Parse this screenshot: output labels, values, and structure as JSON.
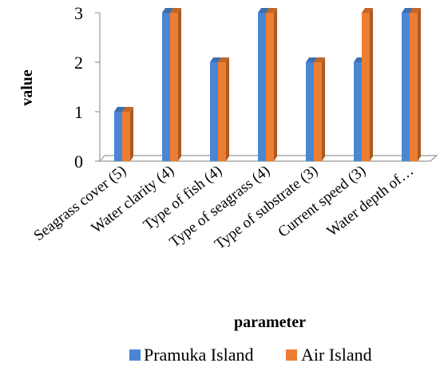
{
  "chart_data": {
    "type": "bar",
    "categories": [
      "Seagrass cover (5)",
      "Water clarity (4)",
      "Type of fish (4)",
      "Type of seagrass (4)",
      "Type of substrate (3)",
      "Current speed (3)",
      "Water depth of…"
    ],
    "series": [
      {
        "name": "Pramuka Island",
        "values": [
          1,
          3,
          2,
          3,
          2,
          2,
          3
        ],
        "color": "#4A86D4"
      },
      {
        "name": "Air Island",
        "values": [
          1,
          3,
          2,
          3,
          2,
          3,
          3
        ],
        "color": "#ED7D31"
      }
    ],
    "title": "",
    "xlabel": "parameter",
    "ylabel": "value",
    "ylim": [
      0,
      3
    ],
    "yticks": [
      0,
      1,
      2,
      3
    ],
    "grid": false,
    "legend_position": "bottom",
    "style": "3d-column"
  }
}
